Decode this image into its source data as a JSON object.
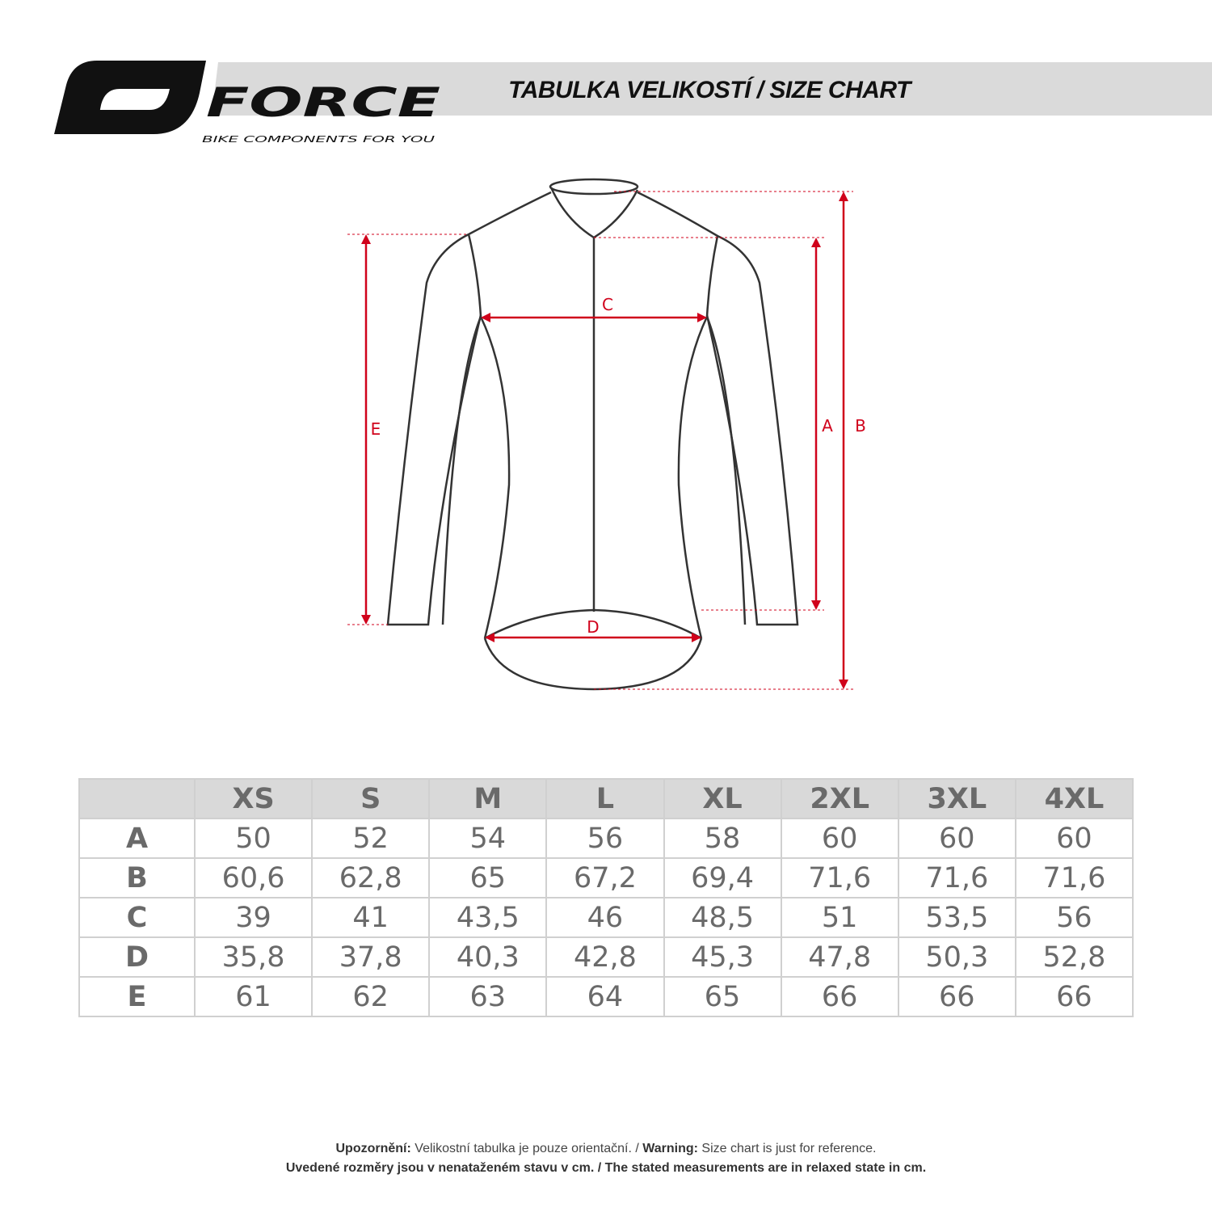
{
  "brand": {
    "name": "FORCE",
    "tagline": "BIKE COMPONENTS FOR YOU"
  },
  "title": "TABULKA VELIKOSTÍ / SIZE CHART",
  "diagram": {
    "labels": {
      "A": "A",
      "B": "B",
      "C": "C",
      "D": "D",
      "E": "E"
    },
    "measure_color": "#d0021b"
  },
  "table": {
    "headers": [
      "",
      "XS",
      "S",
      "M",
      "L",
      "XL",
      "2XL",
      "3XL",
      "4XL"
    ],
    "rows": [
      {
        "label": "A",
        "values": [
          "50",
          "52",
          "54",
          "56",
          "58",
          "60",
          "60",
          "60"
        ]
      },
      {
        "label": "B",
        "values": [
          "60,6",
          "62,8",
          "65",
          "67,2",
          "69,4",
          "71,6",
          "71,6",
          "71,6"
        ]
      },
      {
        "label": "C",
        "values": [
          "39",
          "41",
          "43,5",
          "46",
          "48,5",
          "51",
          "53,5",
          "56"
        ]
      },
      {
        "label": "D",
        "values": [
          "35,8",
          "37,8",
          "40,3",
          "42,8",
          "45,3",
          "47,8",
          "50,3",
          "52,8"
        ]
      },
      {
        "label": "E",
        "values": [
          "61",
          "62",
          "63",
          "64",
          "65",
          "66",
          "66",
          "66"
        ]
      }
    ]
  },
  "notes": {
    "line1_bold1": "Upozornění:",
    "line1_text1": " Velikostní tabulka je pouze orientační. / ",
    "line1_bold2": "Warning:",
    "line1_text2": " Size chart is just for reference.",
    "line2": "Uvedené rozměry jsou v nenataženém stavu v cm. / The stated measurements are in relaxed state in cm."
  }
}
